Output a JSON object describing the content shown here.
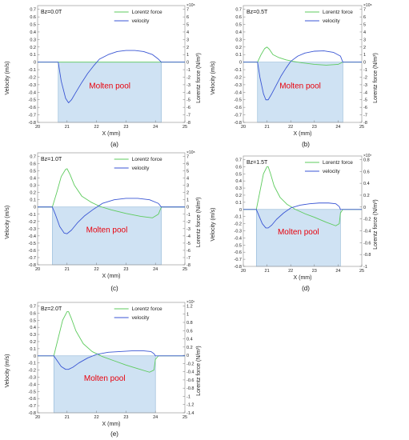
{
  "colors": {
    "lorentz": "#5ecb5e",
    "velocity": "#3a56d4",
    "pool_fill": "#cfe2f3",
    "pool_edge": "#8fb6d6",
    "pool_label": "#e8000b"
  },
  "chart_data": [
    {
      "panel": "(a)",
      "type": "line",
      "annotation": "Bz=0.0T",
      "xlabel": "X  (mm)",
      "ylabel_left": "Velocity  (m/s)",
      "ylabel_right": "Lorentz force  (N/m³)",
      "right_exponent": "×10⁸",
      "xlim": [
        20,
        25
      ],
      "xticks": [
        "20",
        "21",
        "22",
        "23",
        "24",
        "25"
      ],
      "ylim_left": [
        -0.8,
        0.75
      ],
      "yticks_left": [
        "0.7",
        "0.6",
        "0.5",
        "0.4",
        "0.3",
        "0.2",
        "0.1",
        "0",
        "-0.1",
        "-0.2",
        "-0.3",
        "-0.4",
        "-0.5",
        "-0.6",
        "-0.7",
        "-0.8"
      ],
      "yticks_right": [
        "7",
        "6",
        "5",
        "4",
        "3",
        "2",
        "1",
        "0",
        "-1",
        "-2",
        "-3",
        "-4",
        "-5",
        "-6",
        "-7",
        "-8"
      ],
      "legend": [
        "Lorentz force",
        "velocity"
      ],
      "pool_label": "Molten pool",
      "pool_x": [
        20.7,
        24.2
      ],
      "series": [
        {
          "name": "Lorentz force",
          "x": [
            20,
            25
          ],
          "y": [
            0,
            0
          ]
        },
        {
          "name": "velocity",
          "x": [
            20,
            20.7,
            20.8,
            20.95,
            21.05,
            21.15,
            21.3,
            21.5,
            21.7,
            21.9,
            22.1,
            22.4,
            22.7,
            23.0,
            23.3,
            23.6,
            23.9,
            24.1,
            24.2,
            24.3,
            25
          ],
          "y": [
            0,
            0,
            -0.25,
            -0.48,
            -0.54,
            -0.5,
            -0.4,
            -0.27,
            -0.15,
            -0.05,
            0.04,
            0.1,
            0.14,
            0.155,
            0.155,
            0.14,
            0.1,
            0.04,
            0.0,
            0,
            0
          ]
        }
      ]
    },
    {
      "panel": "(b)",
      "type": "line",
      "annotation": "Bz=0.5T",
      "xlabel": "X  (mm)",
      "ylabel_left": "Velocity  (m/s)",
      "ylabel_right": "Lorentz force  (N/m³)",
      "right_exponent": "×10⁸",
      "xlim": [
        20,
        25
      ],
      "xticks": [
        "20",
        "21",
        "22",
        "23",
        "24",
        "25"
      ],
      "ylim_left": [
        -0.8,
        0.75
      ],
      "yticks_left": [
        "0.7",
        "0.6",
        "0.5",
        "0.4",
        "0.3",
        "0.2",
        "0.1",
        "0",
        "-0.1",
        "-0.2",
        "-0.3",
        "-0.4",
        "-0.5",
        "-0.6",
        "-0.7",
        "-0.8"
      ],
      "yticks_right": [
        "7",
        "6",
        "5",
        "4",
        "3",
        "2",
        "1",
        "0",
        "-1",
        "-2",
        "-3",
        "-4",
        "-5",
        "-6",
        "-7",
        "-8"
      ],
      "legend": [
        "Lorentz force",
        "velocity"
      ],
      "pool_label": "Molten pool",
      "pool_x": [
        20.6,
        24.2
      ],
      "series": [
        {
          "name": "Lorentz force",
          "x": [
            20,
            20.6,
            20.75,
            20.9,
            21.0,
            21.1,
            21.25,
            21.5,
            21.8,
            22.1,
            22.5,
            23.0,
            23.5,
            24.0,
            24.2,
            24.3,
            25
          ],
          "y": [
            0,
            0,
            0.1,
            0.18,
            0.2,
            0.17,
            0.1,
            0.06,
            0.03,
            0.01,
            -0.01,
            -0.03,
            -0.04,
            -0.03,
            0,
            0,
            0
          ]
        },
        {
          "name": "velocity",
          "x": [
            20,
            20.6,
            20.7,
            20.85,
            20.95,
            21.05,
            21.2,
            21.4,
            21.6,
            21.8,
            22.0,
            22.3,
            22.6,
            23.0,
            23.4,
            23.8,
            24.1,
            24.2,
            24.3,
            25
          ],
          "y": [
            0,
            0,
            -0.2,
            -0.42,
            -0.5,
            -0.5,
            -0.42,
            -0.3,
            -0.18,
            -0.08,
            0.01,
            0.08,
            0.12,
            0.145,
            0.15,
            0.13,
            0.08,
            0.0,
            0,
            0
          ]
        }
      ]
    },
    {
      "panel": "(c)",
      "type": "line",
      "annotation": "Bz=1.0T",
      "xlabel": "X  (mm)",
      "ylabel_left": "Velocity  (m/s)",
      "ylabel_right": "Lorentz force  (N/m³)",
      "right_exponent": "×10⁸",
      "xlim": [
        20,
        25
      ],
      "xticks": [
        "20",
        "21",
        "22",
        "23",
        "24",
        "25"
      ],
      "ylim_left": [
        -0.8,
        0.75
      ],
      "yticks_left": [
        "0.7",
        "0.6",
        "0.5",
        "0.4",
        "0.3",
        "0.2",
        "0.1",
        "0",
        "-0.1",
        "-0.2",
        "-0.3",
        "-0.4",
        "-0.5",
        "-0.6",
        "-0.7",
        "-0.8"
      ],
      "yticks_right": [
        "7",
        "6",
        "5",
        "4",
        "3",
        "2",
        "1",
        "0",
        "-1",
        "-2",
        "-3",
        "-4",
        "-5",
        "-6",
        "-7",
        "-8"
      ],
      "legend": [
        "Lorentz force",
        "velocity"
      ],
      "pool_label": "Molten pool",
      "pool_x": [
        20.5,
        24.2
      ],
      "series": [
        {
          "name": "Lorentz force",
          "x": [
            20,
            20.5,
            20.65,
            20.8,
            20.95,
            21.0,
            21.1,
            21.25,
            21.5,
            21.8,
            22.1,
            22.5,
            23.0,
            23.5,
            23.9,
            24.1,
            24.2,
            24.3,
            25
          ],
          "y": [
            0,
            0,
            0.2,
            0.42,
            0.52,
            0.53,
            0.45,
            0.3,
            0.15,
            0.07,
            0.01,
            -0.04,
            -0.09,
            -0.13,
            -0.15,
            -0.1,
            0,
            0,
            0
          ]
        },
        {
          "name": "velocity",
          "x": [
            20,
            20.5,
            20.6,
            20.75,
            20.9,
            21.0,
            21.15,
            21.35,
            21.6,
            21.9,
            22.2,
            22.6,
            23.0,
            23.4,
            23.8,
            24.1,
            24.2,
            24.3,
            25
          ],
          "y": [
            0,
            0,
            -0.1,
            -0.27,
            -0.36,
            -0.37,
            -0.32,
            -0.22,
            -0.12,
            -0.03,
            0.05,
            0.1,
            0.12,
            0.12,
            0.1,
            0.05,
            0.0,
            0,
            0
          ]
        }
      ]
    },
    {
      "panel": "(d)",
      "type": "line",
      "annotation": "Bz=1.5T",
      "xlabel": "X  (mm)",
      "ylabel_left": "Velocity  (m/s)",
      "ylabel_right": "Lorentz force  (N/m³)",
      "right_exponent": "×10⁷",
      "xlim": [
        20,
        25
      ],
      "xticks": [
        "20",
        "21",
        "22",
        "23",
        "24",
        "25"
      ],
      "ylim_left": [
        -0.8,
        0.75
      ],
      "yticks_left": [
        "0.7",
        "0.6",
        "0.5",
        "0.4",
        "0.3",
        "0.2",
        "0.1",
        "0",
        "-0.1",
        "-0.2",
        "-0.3",
        "-0.4",
        "-0.5",
        "-0.6",
        "-0.7",
        "-0.8"
      ],
      "yticks_right": [
        "0.8",
        "0.6",
        "0.4",
        "0.2",
        "0",
        "-0.2",
        "-0.4",
        "-0.6",
        "-0.8",
        "-1"
      ],
      "legend": [
        "Lorentz force",
        "velocity"
      ],
      "pool_label": "Molten pool",
      "pool_x": [
        20.55,
        24.1
      ],
      "series": [
        {
          "name": "Lorentz force",
          "x": [
            20,
            20.55,
            20.7,
            20.85,
            21.0,
            21.05,
            21.15,
            21.3,
            21.55,
            21.85,
            22.2,
            22.6,
            23.0,
            23.5,
            23.9,
            24.05,
            24.1,
            24.2,
            25
          ],
          "y": [
            0,
            0,
            0.25,
            0.5,
            0.6,
            0.6,
            0.5,
            0.33,
            0.17,
            0.07,
            0.0,
            -0.06,
            -0.11,
            -0.18,
            -0.23,
            -0.2,
            -0.05,
            0,
            0
          ]
        },
        {
          "name": "velocity",
          "x": [
            20,
            20.55,
            20.65,
            20.8,
            20.95,
            21.05,
            21.2,
            21.4,
            21.7,
            22.0,
            22.4,
            22.8,
            23.2,
            23.6,
            23.9,
            24.05,
            24.1,
            24.2,
            25
          ],
          "y": [
            0,
            0,
            -0.08,
            -0.2,
            -0.26,
            -0.26,
            -0.22,
            -0.14,
            -0.05,
            0.02,
            0.06,
            0.08,
            0.09,
            0.09,
            0.08,
            0.04,
            0.0,
            0,
            0
          ]
        }
      ]
    },
    {
      "panel": "(e)",
      "type": "line",
      "annotation": "Bz=2.0T",
      "xlabel": "X  (mm)",
      "ylabel_left": "Velocity  (m/s)",
      "ylabel_right": "Lorentz force  (N/m³)",
      "right_exponent": "×10⁷",
      "xlim": [
        20,
        25
      ],
      "xticks": [
        "20",
        "21",
        "22",
        "23",
        "24",
        "25"
      ],
      "ylim_left": [
        -0.8,
        0.75
      ],
      "yticks_left": [
        "0.7",
        "0.6",
        "0.5",
        "0.4",
        "0.3",
        "0.2",
        "0.1",
        "0",
        "-0.1",
        "-0.2",
        "-0.3",
        "-0.4",
        "-0.5",
        "-0.6",
        "-0.7",
        "-0.8"
      ],
      "yticks_right": [
        "1.2",
        "1",
        "0.8",
        "0.6",
        "0.4",
        "0.2",
        "0",
        "-0.2",
        "-0.4",
        "-0.6",
        "-0.8",
        "-1",
        "-1.2",
        "-1.4"
      ],
      "legend": [
        "Lorentz force",
        "velocity"
      ],
      "pool_label": "Molten pool",
      "pool_x": [
        20.55,
        24.0
      ],
      "series": [
        {
          "name": "Lorentz force",
          "x": [
            20,
            20.55,
            20.7,
            20.85,
            21.0,
            21.05,
            21.15,
            21.3,
            21.55,
            21.85,
            22.2,
            22.6,
            23.0,
            23.4,
            23.8,
            23.95,
            24.0,
            24.1,
            25
          ],
          "y": [
            0,
            0,
            0.25,
            0.5,
            0.62,
            0.62,
            0.52,
            0.35,
            0.17,
            0.06,
            -0.01,
            -0.07,
            -0.13,
            -0.18,
            -0.23,
            -0.2,
            -0.05,
            0,
            0
          ]
        },
        {
          "name": "velocity",
          "x": [
            20,
            20.55,
            20.65,
            20.8,
            20.95,
            21.05,
            21.2,
            21.4,
            21.7,
            22.0,
            22.4,
            22.8,
            23.2,
            23.6,
            23.85,
            23.95,
            24.0,
            24.1,
            25
          ],
          "y": [
            0,
            0,
            -0.06,
            -0.15,
            -0.19,
            -0.19,
            -0.16,
            -0.1,
            -0.03,
            0.02,
            0.05,
            0.06,
            0.07,
            0.07,
            0.06,
            0.03,
            0.0,
            0,
            0
          ]
        }
      ]
    }
  ]
}
